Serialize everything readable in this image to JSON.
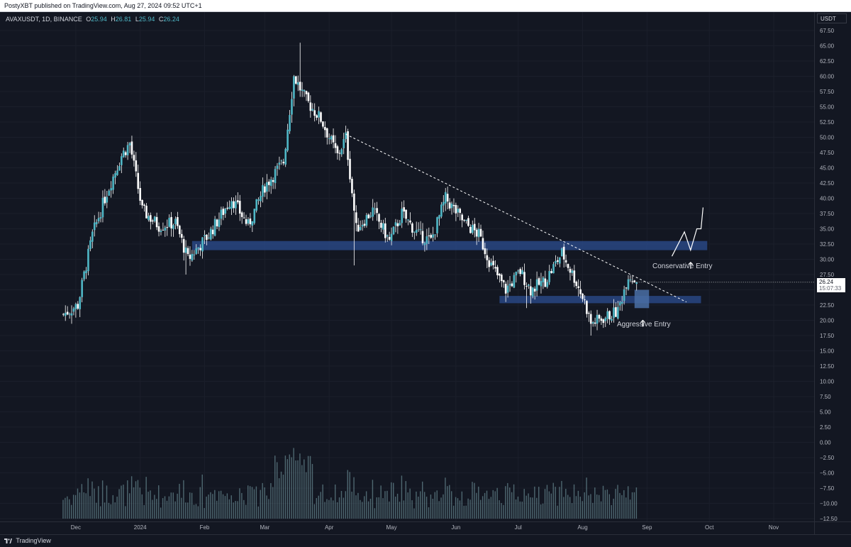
{
  "header": {
    "published_text": "PostyXBT published on TradingView.com, Aug 27, 2024 09:52 UTC+1"
  },
  "symbol": {
    "name": "AVAXUSDT, 1D, BINANCE",
    "open_label": "O",
    "open_value": "25.94",
    "high_label": "H",
    "high_value": "26.81",
    "low_label": "L",
    "low_value": "25.94",
    "close_label": "C",
    "close_value": "26.24"
  },
  "currency": "USDT",
  "last_price": {
    "price": "26.24",
    "countdown": "15:07:33"
  },
  "annotations": {
    "conservative": "Conservative Entry",
    "aggressive": "Aggressive Entry"
  },
  "footer": {
    "brand": "TradingView"
  },
  "colors": {
    "background": "#131722",
    "candle": "#4fb7c6",
    "wick": "#ffffff",
    "zone": "#2b4a8a",
    "grid": "#1b1f2b"
  },
  "chart_data": {
    "type": "candlestick",
    "title": "",
    "xlabel": "",
    "ylabel": "",
    "ylim": [
      -12.5,
      67.5
    ],
    "grid": true,
    "y_ticks": [
      "67.50",
      "65.00",
      "62.50",
      "60.00",
      "57.50",
      "55.00",
      "52.50",
      "50.00",
      "47.50",
      "45.00",
      "42.50",
      "40.00",
      "37.50",
      "35.00",
      "32.50",
      "30.00",
      "27.50",
      "25.00",
      "22.50",
      "20.00",
      "17.50",
      "15.00",
      "12.50",
      "10.00",
      "7.50",
      "5.00",
      "2.50",
      "0.00",
      "−2.50",
      "−5.00",
      "−7.50",
      "−10.00",
      "−12.50"
    ],
    "x_ticks": [
      "Dec",
      "2024",
      "Feb",
      "Mar",
      "Apr",
      "May",
      "Jun",
      "Jul",
      "Aug",
      "Sep",
      "Oct",
      "Nov"
    ],
    "price_path": [
      {
        "date": "2023-11-25",
        "close": 21.0
      },
      {
        "date": "2023-12-02",
        "close": 22.5
      },
      {
        "date": "2023-12-09",
        "close": 34.0
      },
      {
        "date": "2023-12-16",
        "close": 41.0
      },
      {
        "date": "2023-12-23",
        "close": 47.0
      },
      {
        "date": "2023-12-27",
        "close": 49.0
      },
      {
        "date": "2024-01-02",
        "close": 38.0
      },
      {
        "date": "2024-01-10",
        "close": 35.5
      },
      {
        "date": "2024-01-18",
        "close": 36.0
      },
      {
        "date": "2024-01-24",
        "close": 30.0
      },
      {
        "date": "2024-02-03",
        "close": 34.0
      },
      {
        "date": "2024-02-14",
        "close": 40.0
      },
      {
        "date": "2024-02-22",
        "close": 35.5
      },
      {
        "date": "2024-03-01",
        "close": 42.0
      },
      {
        "date": "2024-03-10",
        "close": 46.0
      },
      {
        "date": "2024-03-15",
        "close": 60.0
      },
      {
        "date": "2024-03-21",
        "close": 56.0
      },
      {
        "date": "2024-03-28",
        "close": 53.0
      },
      {
        "date": "2024-04-05",
        "close": 47.0
      },
      {
        "date": "2024-04-09",
        "close": 50.0
      },
      {
        "date": "2024-04-14",
        "close": 35.0
      },
      {
        "date": "2024-04-22",
        "close": 38.0
      },
      {
        "date": "2024-04-30",
        "close": 33.0
      },
      {
        "date": "2024-05-06",
        "close": 37.5
      },
      {
        "date": "2024-05-14",
        "close": 34.0
      },
      {
        "date": "2024-05-20",
        "close": 33.0
      },
      {
        "date": "2024-05-27",
        "close": 40.0
      },
      {
        "date": "2024-06-05",
        "close": 36.0
      },
      {
        "date": "2024-06-12",
        "close": 34.0
      },
      {
        "date": "2024-06-18",
        "close": 29.0
      },
      {
        "date": "2024-06-25",
        "close": 25.0
      },
      {
        "date": "2024-07-02",
        "close": 28.0
      },
      {
        "date": "2024-07-07",
        "close": 25.0
      },
      {
        "date": "2024-07-14",
        "close": 26.5
      },
      {
        "date": "2024-07-22",
        "close": 31.0
      },
      {
        "date": "2024-07-28",
        "close": 27.0
      },
      {
        "date": "2024-08-02",
        "close": 23.0
      },
      {
        "date": "2024-08-05",
        "close": 19.5
      },
      {
        "date": "2024-08-12",
        "close": 20.5
      },
      {
        "date": "2024-08-18",
        "close": 21.5
      },
      {
        "date": "2024-08-23",
        "close": 27.5
      },
      {
        "date": "2024-08-27",
        "close": 26.24
      }
    ],
    "spikes": [
      {
        "date": "2024-01-23",
        "low": 27.5
      },
      {
        "date": "2024-04-13",
        "low": 29.0
      },
      {
        "date": "2024-07-05",
        "low": 22.0
      },
      {
        "date": "2024-08-05",
        "low": 17.5
      },
      {
        "date": "2024-03-18",
        "high": 65.5
      }
    ],
    "zones": [
      {
        "from": "2024-01-26",
        "to": "2024-09-30",
        "low": 31.5,
        "high": 33.0
      },
      {
        "from": "2024-06-22",
        "to": "2024-09-27",
        "low": 22.8,
        "high": 24.0
      },
      {
        "from": "2024-08-26",
        "to": "2024-09-02",
        "low": 22.0,
        "high": 25.0
      }
    ],
    "trendline": [
      {
        "date": "2024-04-09",
        "price": 50.5
      },
      {
        "date": "2024-09-20",
        "price": 23.0
      }
    ],
    "projection": [
      {
        "date": "2024-09-13",
        "price": 30.5
      },
      {
        "date": "2024-09-19",
        "price": 34.5
      },
      {
        "date": "2024-09-22",
        "price": 31.5
      },
      {
        "date": "2024-09-25",
        "price": 35.0
      },
      {
        "date": "2024-09-27",
        "price": 35.0
      },
      {
        "date": "2024-09-28",
        "price": 38.5
      }
    ]
  }
}
